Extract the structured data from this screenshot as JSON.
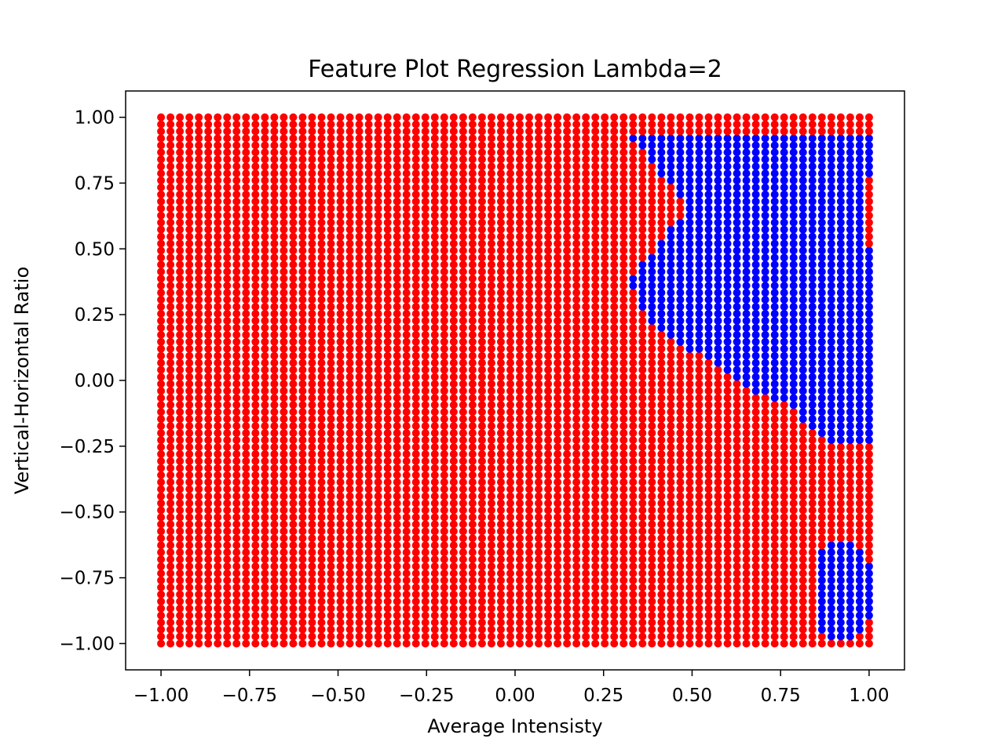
{
  "chart_data": {
    "type": "scatter",
    "title": "Feature Plot Regression Lambda=2",
    "xlabel": "Average Intensisty",
    "ylabel": "Vertical-Horizontal Ratio",
    "xlim": [
      -1.1,
      1.1
    ],
    "ylim": [
      -1.1,
      1.1
    ],
    "xticks": [
      -1.0,
      -0.75,
      -0.5,
      -0.25,
      0.0,
      0.25,
      0.5,
      0.75,
      1.0
    ],
    "yticks": [
      -1.0,
      -0.75,
      -0.5,
      -0.25,
      0.0,
      0.25,
      0.5,
      0.75,
      1.0
    ],
    "xtick_labels": [
      "−1.00",
      "−0.75",
      "−0.50",
      "−0.25",
      "0.00",
      "0.25",
      "0.50",
      "0.75",
      "1.00"
    ],
    "ytick_labels": [
      "−1.00",
      "−0.75",
      "−0.50",
      "−0.25",
      "0.00",
      "0.25",
      "0.50",
      "0.75",
      "1.00"
    ],
    "grid": false,
    "sampling_grid": {
      "x_range": [
        -1.0,
        1.0
      ],
      "y_range": [
        -1.0,
        1.0
      ],
      "n_x": 76,
      "n_y": 76
    },
    "series": [
      {
        "color": "#ff0000",
        "region": "default"
      },
      {
        "color": "#0000ff",
        "region": "blue_regions",
        "blue_regions": [
          {
            "description": "upper-right classification region",
            "x_range": [
              0.32,
              1.0
            ],
            "left_boundary": [
              [
                0.33,
                0.93
              ],
              [
                0.38,
                0.84
              ],
              [
                0.46,
                0.72
              ],
              [
                0.49,
                0.65
              ],
              [
                0.4,
                0.5
              ],
              [
                0.33,
                0.38
              ],
              [
                0.37,
                0.25
              ],
              [
                0.42,
                0.18
              ],
              [
                0.55,
                0.08
              ],
              [
                0.65,
                -0.02
              ],
              [
                0.78,
                -0.1
              ],
              [
                0.86,
                -0.22
              ],
              [
                0.92,
                -0.24
              ],
              [
                1.0,
                -0.24
              ]
            ],
            "y_max": 0.96,
            "right_red_band": {
              "x": 1.0,
              "y_range": [
                0.52,
                0.78
              ]
            }
          },
          {
            "description": "lower-right classification region",
            "x_range": [
              0.86,
              1.0
            ],
            "y_range": [
              -0.98,
              -0.62
            ]
          }
        ]
      }
    ]
  }
}
